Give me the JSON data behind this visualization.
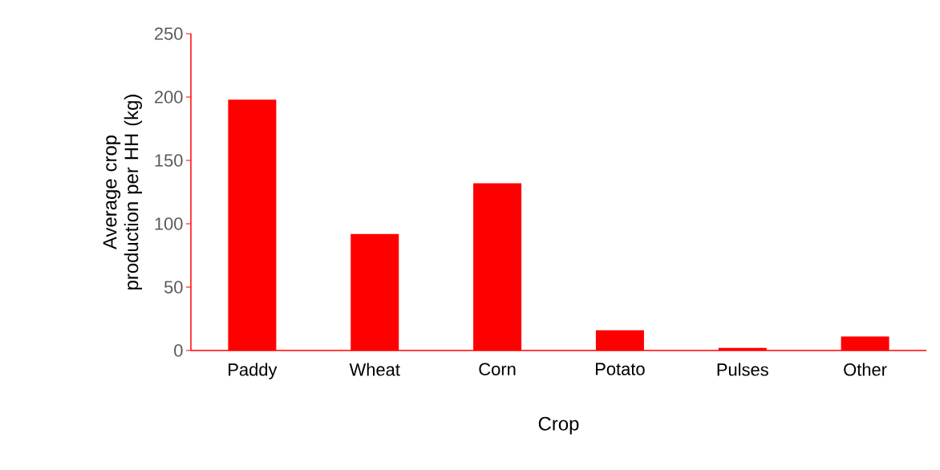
{
  "chart_data": {
    "type": "bar",
    "xlabel": "Crop",
    "ylabel": "Average crop production per HH (kg)",
    "categories": [
      "Paddy",
      "Wheat",
      "Corn",
      "Potato",
      "Pulses",
      "Other"
    ],
    "values": [
      198,
      92,
      132,
      16,
      2,
      11
    ],
    "color": "#ff0000",
    "ylim": [
      0,
      250
    ],
    "yticks": [
      0,
      50,
      100,
      150,
      200,
      250
    ]
  }
}
